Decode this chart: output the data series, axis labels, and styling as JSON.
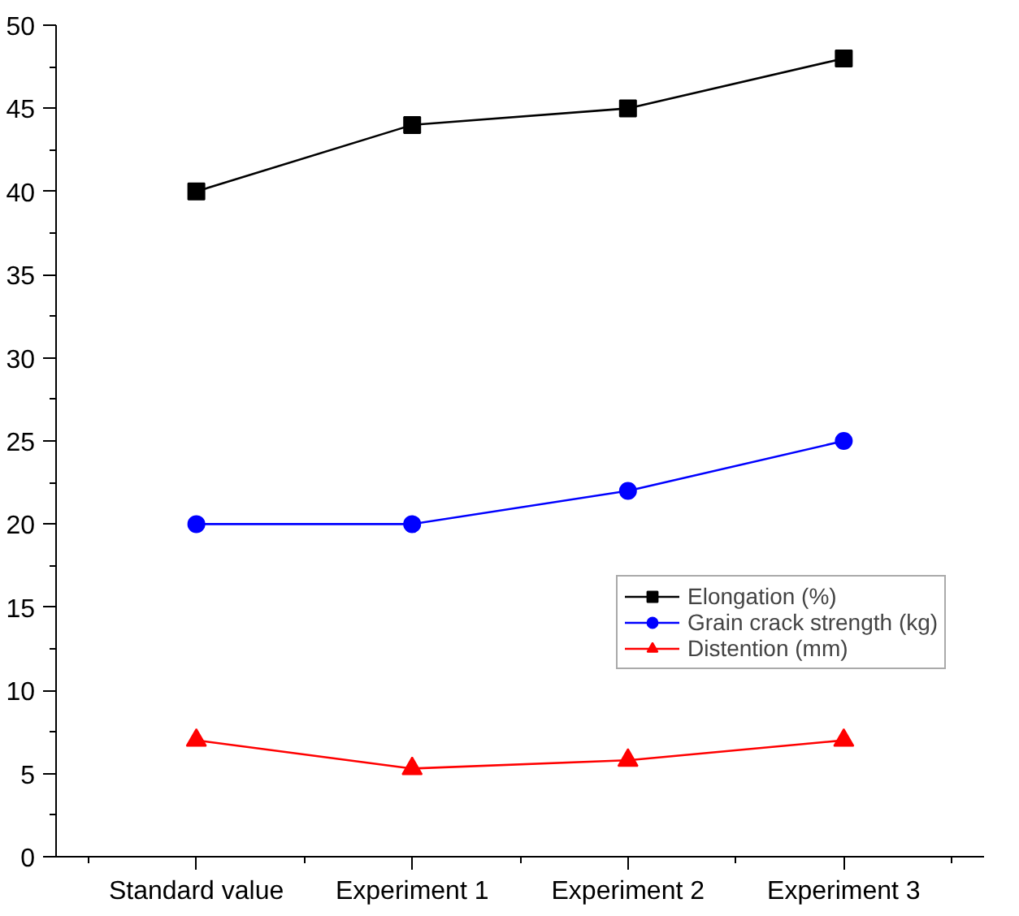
{
  "chart_data": {
    "type": "line",
    "categories": [
      "Standard value",
      "Experiment 1",
      "Experiment 2",
      "Experiment 3"
    ],
    "series": [
      {
        "name": "Elongation (%)",
        "color": "#000000",
        "marker": "square",
        "values": [
          40,
          44,
          45,
          48
        ]
      },
      {
        "name": "Grain crack strength (kg)",
        "color": "#0000ff",
        "marker": "circle",
        "values": [
          20,
          20,
          22,
          25
        ]
      },
      {
        "name": "Distention (mm)",
        "color": "#ff0000",
        "marker": "triangle",
        "values": [
          7,
          5.3,
          5.8,
          7
        ]
      }
    ],
    "ylim": [
      0,
      50
    ],
    "yticks": [
      0,
      5,
      10,
      15,
      20,
      25,
      30,
      35,
      40,
      45,
      50
    ],
    "grid": false,
    "legend": "right",
    "line_style": "solid"
  }
}
